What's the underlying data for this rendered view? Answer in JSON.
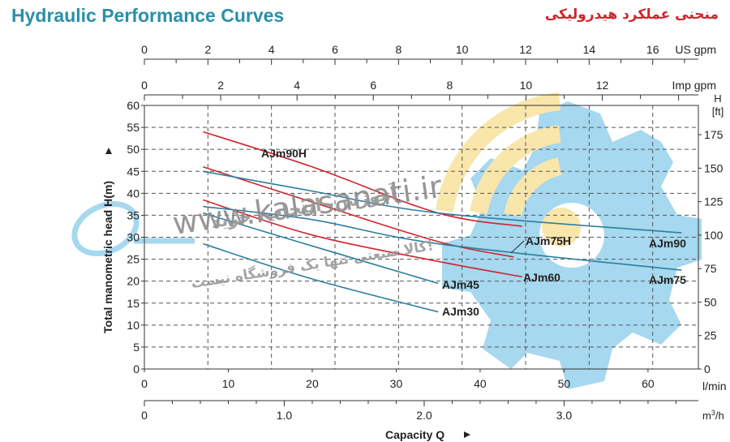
{
  "header": {
    "title": "Hydraulic Performance Curves",
    "title_fa": "منحنی عملکرد هیدرولیکی"
  },
  "watermark": {
    "line1": "آموزش، انتخاب، خرید",
    "line2": "www.kalasanati.ir",
    "line3": "کالا صنعتی تنها یک فروشگاه نیست!"
  },
  "colors": {
    "teal": "#2a8fa8",
    "red": "#d0242c",
    "blue_curve": "#2b7fa0",
    "gear": "#a6d8ef",
    "wifi": "#f9e6ab"
  },
  "chart_data": {
    "type": "line",
    "xlabel": "Capacity Q",
    "ylabel": "Total manometric head H(m)",
    "xunit": "l/min",
    "y2unit": "H [ft]",
    "xlim": [
      0,
      66
    ],
    "ylim": [
      0,
      60
    ],
    "grid": true,
    "x_ticks": [
      "0",
      "10",
      "20",
      "30",
      "40",
      "50",
      "60"
    ],
    "y_ticks": [
      "0",
      "5",
      "10",
      "15",
      "20",
      "25",
      "30",
      "35",
      "40",
      "45",
      "50",
      "55",
      "60"
    ],
    "y2_ticks": [
      "0",
      "25",
      "50",
      "75",
      "100",
      "125",
      "150",
      "175"
    ],
    "us_gpm_label": "US gpm",
    "us_gpm_ticks": [
      "0",
      "2",
      "4",
      "6",
      "8",
      "10",
      "12",
      "14",
      "16"
    ],
    "imp_gpm_label": "Imp gpm",
    "imp_gpm_ticks": [
      "0",
      "2",
      "4",
      "6",
      "8",
      "10",
      "12"
    ],
    "m3h_label": "m³/h",
    "m3h_ticks": [
      "0",
      "1.0",
      "2.0",
      "3.0"
    ],
    "series": [
      {
        "name": "AJm90H",
        "color": "#d0242c",
        "x": [
          7,
          20,
          35,
          45
        ],
        "y": [
          54,
          46,
          35.5,
          32.5
        ]
      },
      {
        "name": "AJm75H",
        "color": "#d0242c",
        "x": [
          7,
          20,
          35,
          44
        ],
        "y": [
          46,
          38,
          29,
          25.5
        ]
      },
      {
        "name": "AJm60",
        "color": "#d0242c",
        "x": [
          7,
          20,
          35,
          45
        ],
        "y": [
          38.5,
          30.5,
          24.5,
          21
        ]
      },
      {
        "name": "AJm90",
        "color": "#2b7fa0",
        "x": [
          7,
          20,
          35,
          64
        ],
        "y": [
          45,
          40.5,
          35.5,
          31
        ]
      },
      {
        "name": "AJm75",
        "color": "#2b7fa0",
        "x": [
          7,
          20,
          35,
          64
        ],
        "y": [
          37,
          34,
          28.5,
          22.5
        ]
      },
      {
        "name": "AJm45",
        "color": "#2b7fa0",
        "x": [
          7,
          20,
          35
        ],
        "y": [
          35.5,
          28,
          19.5
        ]
      },
      {
        "name": "AJm30",
        "color": "#2b7fa0",
        "x": [
          7,
          20,
          35
        ],
        "y": [
          28.5,
          20.5,
          13
        ]
      }
    ],
    "series_labels": {
      "AJm90H": "AJm90H",
      "AJm75H": "AJm75H",
      "AJm60": "AJm60",
      "AJm90": "AJm90",
      "AJm75": "AJm75",
      "AJm45": "AJm45",
      "AJm30": "AJm30"
    }
  }
}
